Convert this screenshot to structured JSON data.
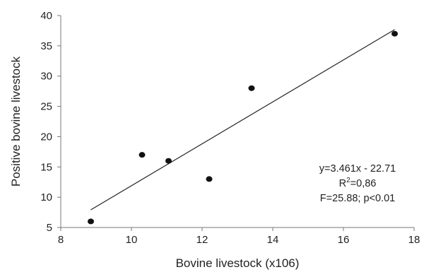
{
  "chart_data": {
    "type": "scatter",
    "xlabel": "Bovine livestock (x106)",
    "ylabel": "Positive bovine livestock",
    "xlim": [
      8,
      18
    ],
    "ylim": [
      5,
      40
    ],
    "xticks": [
      8,
      10,
      12,
      14,
      16,
      18
    ],
    "yticks": [
      5,
      10,
      15,
      20,
      25,
      30,
      35,
      40
    ],
    "grid": false,
    "points": [
      {
        "x": 8.85,
        "y": 6
      },
      {
        "x": 10.3,
        "y": 17
      },
      {
        "x": 11.05,
        "y": 16
      },
      {
        "x": 12.2,
        "y": 13
      },
      {
        "x": 13.4,
        "y": 28
      },
      {
        "x": 17.45,
        "y": 37
      }
    ],
    "trendline": {
      "slope": 3.461,
      "intercept": -22.71,
      "x_range": [
        8.85,
        17.45
      ]
    },
    "annotations": {
      "equation": "y=3.461x - 22.71",
      "r_squared_prefix": "R",
      "r_squared_sup": "2",
      "r_squared_value": "=0,86",
      "f_stat": "F=25.88; p<0.01"
    },
    "colors": {
      "points": "#111111",
      "line": "#222222",
      "axes": "#777777"
    }
  }
}
